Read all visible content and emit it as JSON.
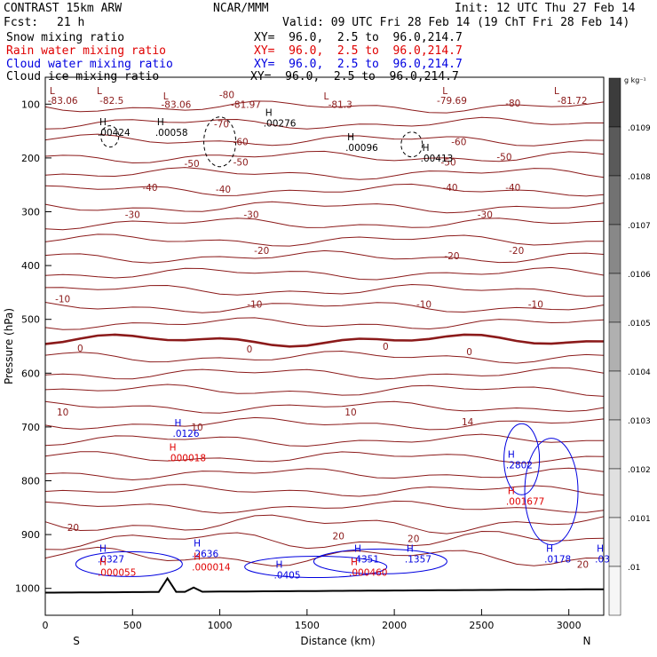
{
  "header": {
    "model": "CONTRAST 15km ARW",
    "center": "NCAR/MMM",
    "init": "Init: 12 UTC Thu 27 Feb 14",
    "fcst_label": "Fcst:",
    "fcst_value": "21 h",
    "valid": "Valid: 09 UTC Fri 28 Feb 14 (19 ChT Fri 28 Feb 14)",
    "fields": [
      {
        "name": "Snow mixing ratio",
        "xy": "XY=  96.0,  2.5 to  96.0,214.7",
        "color": "#000000"
      },
      {
        "name": "Rain water mixing ratio",
        "xy": "XY=  96.0,  2.5 to  96.0,214.7",
        "color": "#e00000"
      },
      {
        "name": "Cloud water mixing ratio",
        "xy": "XY=  96.0,  2.5 to  96.0,214.7",
        "color": "#0000e0"
      },
      {
        "name": "Cloud ice mixing ratio",
        "xy": "XY=  96.0,  2.5 to  96.0,214.7",
        "color": "#000000"
      }
    ]
  },
  "chart_data": {
    "type": "cross-section",
    "xlabel": "Distance (km)",
    "ylabel": "Pressure (hPa)",
    "xlim": [
      0,
      3200
    ],
    "ylim": [
      1050,
      50
    ],
    "x_ticks": [
      0,
      500,
      1000,
      1500,
      2000,
      2500,
      3000
    ],
    "y_ticks": [
      100,
      200,
      300,
      400,
      500,
      600,
      700,
      800,
      900,
      1000
    ],
    "x_end_labels": {
      "left": "S",
      "right": "N"
    },
    "colorbar": {
      "unit": "g kg⁻¹",
      "labels": [
        ".0109",
        ".0108",
        ".0107",
        ".0106",
        ".0105",
        ".0104",
        ".0103",
        ".0102",
        ".0101",
        ".01"
      ],
      "shades": [
        "#3c3c3c",
        "#5a5a5a",
        "#727272",
        "#888888",
        "#9c9c9c",
        "#b0b0b0",
        "#c2c2c2",
        "#d2d2d2",
        "#e0e0e0",
        "#ececec",
        "#f6f6f6"
      ]
    },
    "temperature_contours": {
      "color": "#8b1a1a",
      "labels": [
        {
          "x": 100,
          "p": 93,
          "text": "-83.06"
        },
        {
          "x": 380,
          "p": 93,
          "text": "-82.5"
        },
        {
          "x": 750,
          "p": 100,
          "text": "-83.06"
        },
        {
          "x": 1150,
          "p": 100,
          "text": "-81.97"
        },
        {
          "x": 1690,
          "p": 100,
          "text": "-81.3"
        },
        {
          "x": 2330,
          "p": 93,
          "text": "-79.69"
        },
        {
          "x": 2680,
          "p": 98,
          "text": "-80"
        },
        {
          "x": 3020,
          "p": 93,
          "text": "-81.72"
        },
        {
          "x": 1040,
          "p": 82,
          "text": "-80"
        },
        {
          "x": 1010,
          "p": 137,
          "text": "-70"
        },
        {
          "x": 1120,
          "p": 170,
          "text": "-60"
        },
        {
          "x": 2370,
          "p": 170,
          "text": "-60"
        },
        {
          "x": 840,
          "p": 210,
          "text": "-50"
        },
        {
          "x": 1120,
          "p": 208,
          "text": "-50"
        },
        {
          "x": 2310,
          "p": 208,
          "text": "-50"
        },
        {
          "x": 2630,
          "p": 198,
          "text": "-50"
        },
        {
          "x": 600,
          "p": 255,
          "text": "-40"
        },
        {
          "x": 1020,
          "p": 258,
          "text": "-40"
        },
        {
          "x": 2320,
          "p": 255,
          "text": "-40"
        },
        {
          "x": 2680,
          "p": 255,
          "text": "-40"
        },
        {
          "x": 500,
          "p": 305,
          "text": "-30"
        },
        {
          "x": 1180,
          "p": 305,
          "text": "-30"
        },
        {
          "x": 2520,
          "p": 305,
          "text": "-30"
        },
        {
          "x": 1240,
          "p": 372,
          "text": "-20"
        },
        {
          "x": 2330,
          "p": 382,
          "text": "-20"
        },
        {
          "x": 2700,
          "p": 372,
          "text": "-20"
        },
        {
          "x": 100,
          "p": 462,
          "text": "-10"
        },
        {
          "x": 1200,
          "p": 472,
          "text": "-10"
        },
        {
          "x": 2170,
          "p": 472,
          "text": "-10"
        },
        {
          "x": 2810,
          "p": 472,
          "text": "-10"
        },
        {
          "x": 200,
          "p": 553,
          "text": "0"
        },
        {
          "x": 1170,
          "p": 555,
          "text": "0"
        },
        {
          "x": 1950,
          "p": 550,
          "text": "0"
        },
        {
          "x": 2430,
          "p": 560,
          "text": "0"
        },
        {
          "x": 100,
          "p": 672,
          "text": "10"
        },
        {
          "x": 870,
          "p": 700,
          "text": "10"
        },
        {
          "x": 1750,
          "p": 672,
          "text": "10"
        },
        {
          "x": 2420,
          "p": 690,
          "text": "14"
        },
        {
          "x": 160,
          "p": 887,
          "text": "20"
        },
        {
          "x": 1680,
          "p": 902,
          "text": "20"
        },
        {
          "x": 2110,
          "p": 907,
          "text": "20"
        },
        {
          "x": 3080,
          "p": 955,
          "text": "20"
        }
      ]
    },
    "highs": [
      {
        "x": 300,
        "p": 152,
        "text": ".00424",
        "color": "#000000"
      },
      {
        "x": 630,
        "p": 152,
        "text": ".00058",
        "color": "#000000"
      },
      {
        "x": 1250,
        "p": 135,
        "text": ".00276",
        "color": "#000000"
      },
      {
        "x": 1720,
        "p": 180,
        "text": ".00096",
        "color": "#000000"
      },
      {
        "x": 2150,
        "p": 200,
        "text": ".00413",
        "color": "#000000"
      },
      {
        "x": 730,
        "p": 712,
        "text": ".0126",
        "color": "#0000e0"
      },
      {
        "x": 700,
        "p": 757,
        "text": ".000018",
        "color": "#e00000"
      },
      {
        "x": 2640,
        "p": 770,
        "text": ".2802",
        "color": "#0000e0"
      },
      {
        "x": 2640,
        "p": 838,
        "text": ".001677",
        "color": "#e00000"
      },
      {
        "x": 300,
        "p": 945,
        "text": ".0327",
        "color": "#0000e0"
      },
      {
        "x": 300,
        "p": 970,
        "text": ".000055",
        "color": "#e00000"
      },
      {
        "x": 840,
        "p": 935,
        "text": ".2636",
        "color": "#0000e0"
      },
      {
        "x": 840,
        "p": 960,
        "text": ".000014",
        "color": "#e00000"
      },
      {
        "x": 1310,
        "p": 975,
        "text": ".0405",
        "color": "#0000e0"
      },
      {
        "x": 1760,
        "p": 945,
        "text": ".4351",
        "color": "#0000e0"
      },
      {
        "x": 1740,
        "p": 970,
        "text": ".000460",
        "color": "#e00000"
      },
      {
        "x": 2060,
        "p": 945,
        "text": ".1357",
        "color": "#0000e0"
      },
      {
        "x": 2860,
        "p": 945,
        "text": ".0178",
        "color": "#0000e0"
      },
      {
        "x": 3150,
        "p": 945,
        "text": ".0321",
        "color": "#0000e0"
      }
    ],
    "l_markers": [
      {
        "x": 40,
        "p": 75,
        "text": "L"
      },
      {
        "x": 310,
        "p": 75,
        "text": "L"
      },
      {
        "x": 690,
        "p": 85,
        "text": "L"
      },
      {
        "x": 1610,
        "p": 85,
        "text": "L"
      },
      {
        "x": 2290,
        "p": 75,
        "text": "L"
      },
      {
        "x": 2930,
        "p": 75,
        "text": "L"
      }
    ]
  }
}
